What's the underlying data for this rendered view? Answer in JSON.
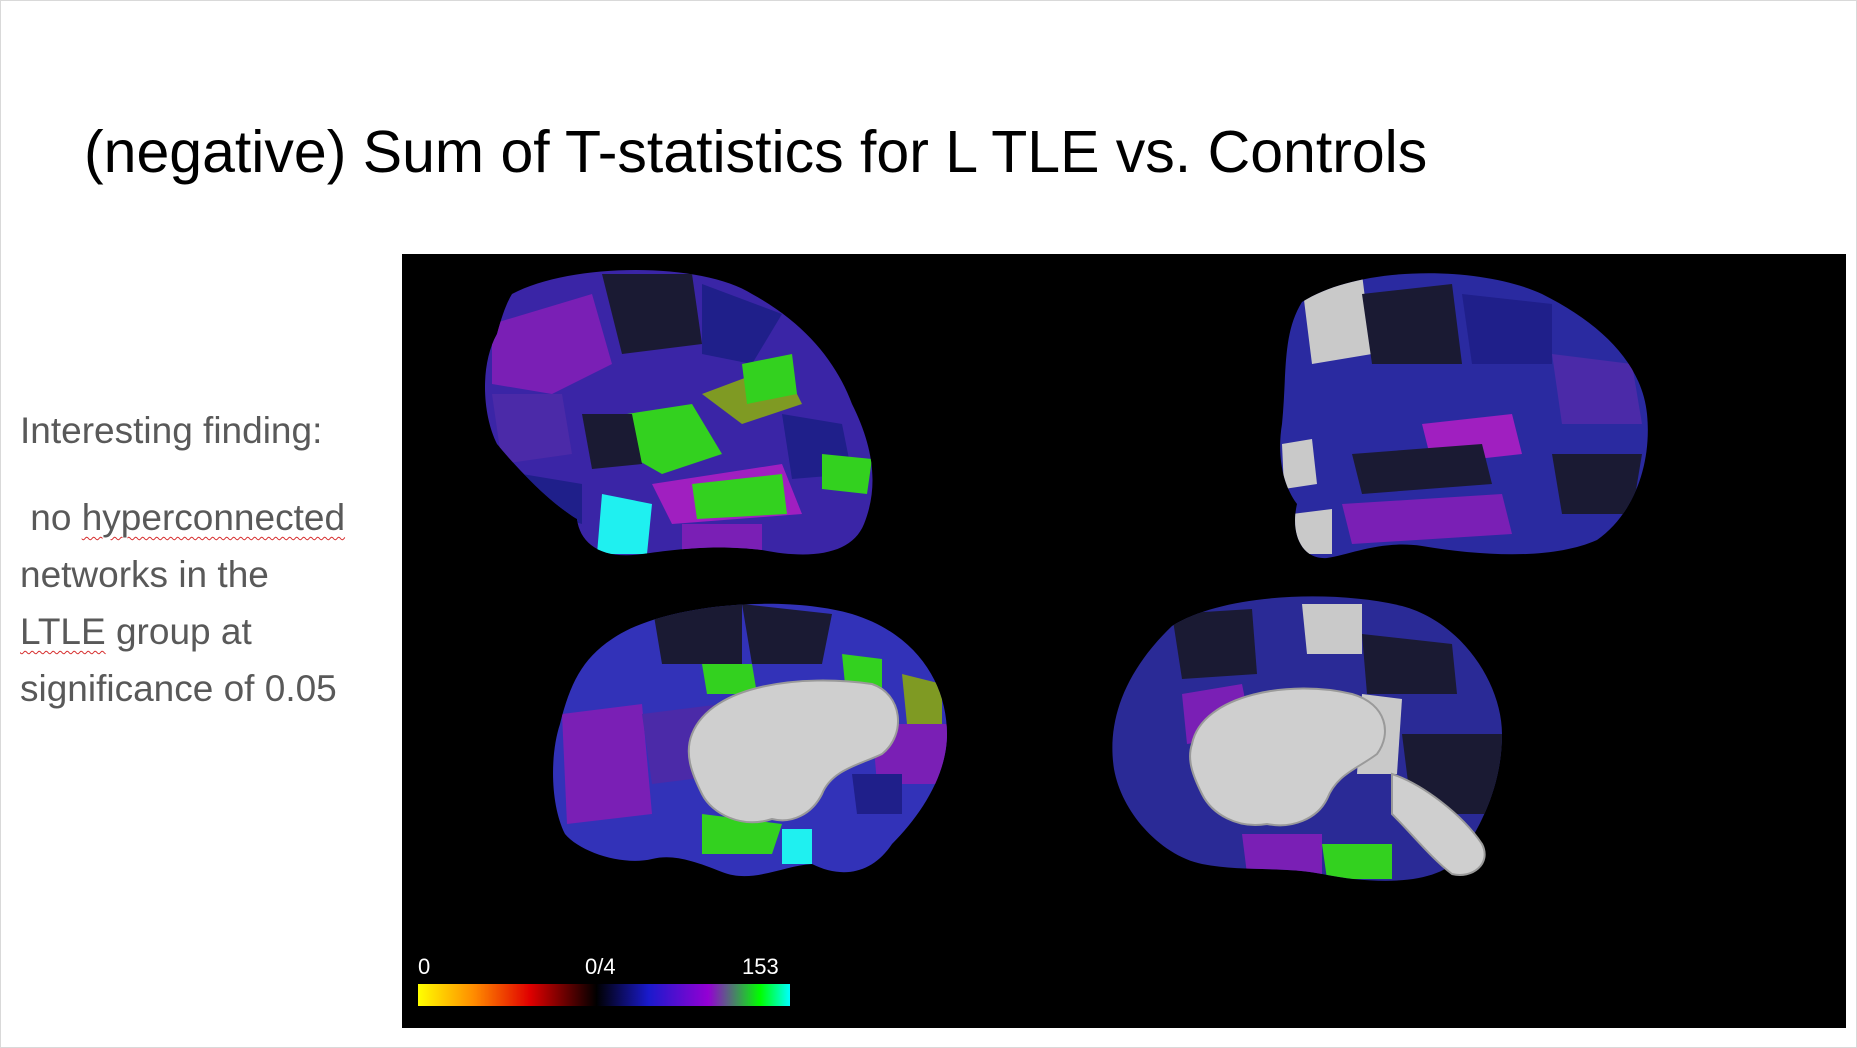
{
  "slide": {
    "title": "(negative) Sum of T-statistics for L TLE vs. Controls"
  },
  "notes": {
    "heading": "Interesting finding:",
    "line1_pre": " no ",
    "line1_word": "hyperconnected",
    "line2": "networks in the",
    "line3_word": "LTLE",
    "line3_post": " group at",
    "line4": "significance of 0.05"
  },
  "figure": {
    "views": [
      "left-hemisphere-lateral",
      "right-hemisphere-lateral",
      "left-hemisphere-medial",
      "right-hemisphere-medial"
    ],
    "colorbar": {
      "min_label": "0",
      "mid_label": "0/4",
      "max_label": "153",
      "colors": [
        "#ffff00",
        "#ff8c00",
        "#e00000",
        "#000000",
        "#1a1acc",
        "#9400d3",
        "#00ff00",
        "#00ffff"
      ]
    },
    "region_colors": {
      "dark": "#1a1a33",
      "navy": "#1f1f8a",
      "blue": "#3030b8",
      "indigo": "#4b2aa8",
      "purple": "#7a1fb5",
      "magenta": "#a01fc0",
      "green": "#33d11f",
      "olive": "#7f9a23",
      "cyan": "#1ff0f0",
      "gray": "#c9c9c9"
    }
  }
}
